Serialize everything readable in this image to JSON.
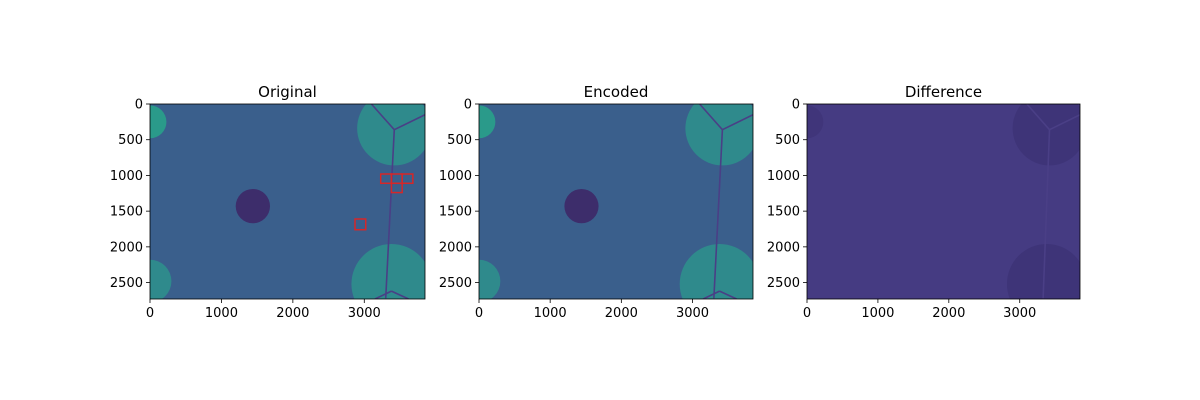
{
  "chart_data": {
    "type": "heatmap",
    "image_extent": {
      "width": 3850,
      "height": 2730
    },
    "xticks": [
      0,
      1000,
      2000,
      3000
    ],
    "yticks": [
      0,
      500,
      1000,
      1500,
      2000,
      2500
    ],
    "panels": [
      {
        "title": "Original",
        "colormap": "viridis",
        "background": "#3a5f8c",
        "blobs": [
          {
            "cx": 0,
            "cy": 250,
            "r": 230,
            "color": "#2a9a8a"
          },
          {
            "cx": 3420,
            "cy": 340,
            "r": 520,
            "color": "#2f8a8c"
          },
          {
            "cx": 3380,
            "cy": 2520,
            "r": 560,
            "color": "#2f8a8c"
          },
          {
            "cx": 0,
            "cy": 2480,
            "r": 300,
            "color": "#2f8a8c"
          },
          {
            "cx": 1440,
            "cy": 1430,
            "r": 240,
            "color": "#3d2d6b"
          }
        ],
        "lines": [
          [
            [
              3420,
              360
            ],
            [
              3300,
              2720
            ]
          ],
          [
            [
              3420,
              360
            ],
            [
              3850,
              150
            ]
          ],
          [
            [
              3420,
              360
            ],
            [
              3100,
              0
            ]
          ],
          [
            [
              3380,
              2620
            ],
            [
              3150,
              2730
            ]
          ],
          [
            [
              3380,
              2620
            ],
            [
              3620,
              2730
            ]
          ]
        ],
        "boxes": [
          {
            "x0": 3230,
            "y0": 980,
            "x1": 3380,
            "y1": 1110
          },
          {
            "x0": 3380,
            "y0": 980,
            "x1": 3530,
            "y1": 1110
          },
          {
            "x0": 3530,
            "y0": 980,
            "x1": 3680,
            "y1": 1110
          },
          {
            "x0": 3380,
            "y0": 1110,
            "x1": 3530,
            "y1": 1240
          },
          {
            "x0": 2870,
            "y0": 1610,
            "x1": 3020,
            "y1": 1760
          }
        ]
      },
      {
        "title": "Encoded",
        "colormap": "viridis",
        "background": "#3a5f8c",
        "blobs": [
          {
            "cx": 0,
            "cy": 250,
            "r": 230,
            "color": "#2a9a8a"
          },
          {
            "cx": 3420,
            "cy": 340,
            "r": 520,
            "color": "#2f8a8c"
          },
          {
            "cx": 3380,
            "cy": 2520,
            "r": 560,
            "color": "#2f8a8c"
          },
          {
            "cx": 0,
            "cy": 2480,
            "r": 300,
            "color": "#2f8a8c"
          },
          {
            "cx": 1440,
            "cy": 1430,
            "r": 240,
            "color": "#3d2d6b"
          }
        ],
        "lines": [
          [
            [
              3420,
              360
            ],
            [
              3300,
              2720
            ]
          ],
          [
            [
              3420,
              360
            ],
            [
              3850,
              150
            ]
          ],
          [
            [
              3420,
              360
            ],
            [
              3100,
              0
            ]
          ],
          [
            [
              3380,
              2620
            ],
            [
              3150,
              2730
            ]
          ],
          [
            [
              3380,
              2620
            ],
            [
              3620,
              2730
            ]
          ]
        ],
        "boxes": []
      },
      {
        "title": "Difference",
        "colormap": "viridis",
        "background": "#453b82",
        "blobs": [
          {
            "cx": 0,
            "cy": 250,
            "r": 230,
            "color": "#40357a"
          },
          {
            "cx": 3420,
            "cy": 340,
            "r": 520,
            "color": "#3e3478"
          },
          {
            "cx": 3380,
            "cy": 2520,
            "r": 560,
            "color": "#3e3478"
          }
        ],
        "lines": [
          [
            [
              3420,
              360
            ],
            [
              3330,
              2720
            ]
          ],
          [
            [
              3420,
              360
            ],
            [
              3850,
              150
            ]
          ],
          [
            [
              3420,
              360
            ],
            [
              3100,
              0
            ]
          ]
        ],
        "boxes": []
      }
    ]
  }
}
